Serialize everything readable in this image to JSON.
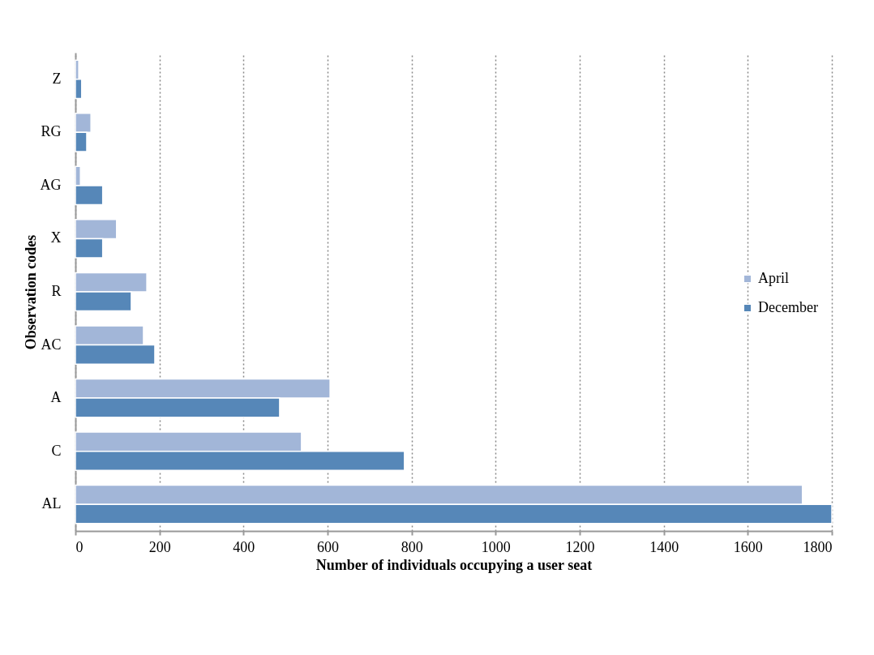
{
  "chart_data": {
    "type": "bar",
    "orientation": "horizontal",
    "xlabel": "Number of individuals occupying a user seat",
    "ylabel": "Observation codes",
    "categories": [
      "Z",
      "RG",
      "AG",
      "X",
      "R",
      "AC",
      "A",
      "C",
      "AL"
    ],
    "series": [
      {
        "name": "April",
        "color": "#a2b6d8",
        "values": [
          8,
          37,
          12,
          98,
          170,
          162,
          606,
          538,
          1730
        ]
      },
      {
        "name": "December",
        "color": "#5687b8",
        "values": [
          15,
          27,
          65,
          65,
          133,
          189,
          486,
          783,
          1800
        ]
      }
    ],
    "xlim": [
      0,
      1800
    ],
    "xticks": [
      0,
      200,
      400,
      600,
      800,
      1000,
      1200,
      1400,
      1600,
      1800
    ],
    "grid": "x",
    "legend": "right"
  }
}
